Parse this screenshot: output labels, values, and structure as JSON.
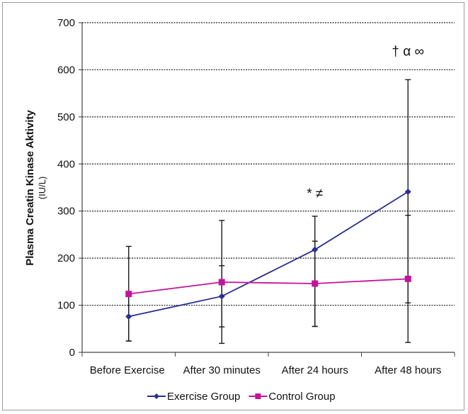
{
  "chart_data": {
    "type": "line",
    "categories": [
      "Before Exercise",
      "After 30 minutes",
      "After 24 hours",
      "After 48 hours"
    ],
    "ylabel": "Plasma Creatin Kinase Aktivity",
    "yunit": "(IU/L)",
    "ylim": [
      0,
      700
    ],
    "yticks": [
      0,
      100,
      200,
      300,
      400,
      500,
      600,
      700
    ],
    "grid": true,
    "legend_position": "bottom",
    "series": [
      {
        "name": "Exercise Group",
        "color": "#2b2f8f",
        "marker": "diamond",
        "values": [
          76,
          119,
          218,
          341
        ],
        "error_low": [
          24,
          19,
          55,
          21
        ],
        "error_high": [
          225,
          280,
          289,
          579
        ]
      },
      {
        "name": "Control Group",
        "color": "#c4149a",
        "marker": "square",
        "values": [
          124,
          149,
          146,
          156
        ],
        "error_low": [
          24,
          54,
          55,
          105
        ],
        "error_high": [
          128,
          184,
          236,
          291
        ]
      }
    ],
    "annotations": [
      {
        "text": "* ≠",
        "category": "After 24 hours",
        "y": 328
      },
      {
        "text": "† α ∞",
        "category": "After 48 hours",
        "y": 630
      }
    ]
  }
}
